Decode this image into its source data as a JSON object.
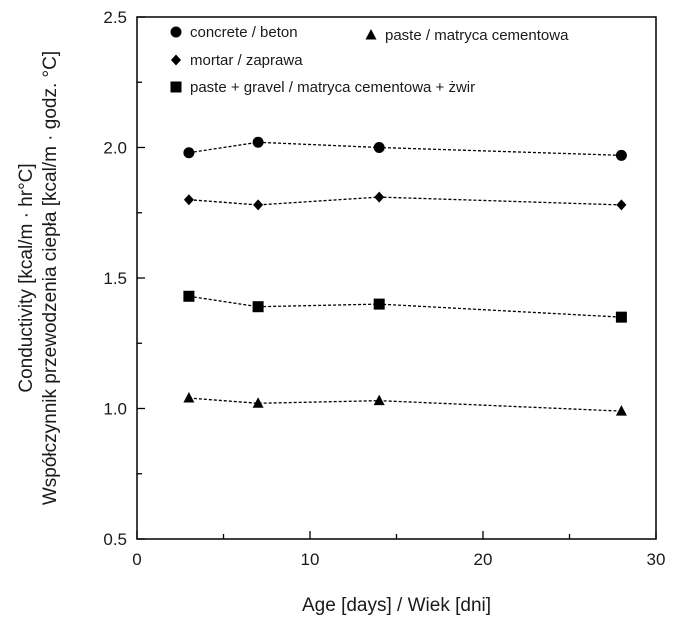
{
  "chart_data": {
    "type": "line",
    "xlabel": "Age [days] / Wiek [dni]",
    "ylabel_line1": "Conductivity [kcal/m · hr°C]",
    "ylabel_line2": "Współczynnik przewodzenia ciepła [kcal/m · godz. °C]",
    "xlim": [
      0,
      30
    ],
    "ylim": [
      0.5,
      2.5
    ],
    "xticks": [
      0,
      10,
      20,
      30
    ],
    "xtick_labels": [
      "0",
      "10",
      "20",
      "30"
    ],
    "yticks": [
      0.5,
      1.0,
      1.5,
      2.0,
      2.5
    ],
    "ytick_labels": [
      "0.5",
      "1.0",
      "1.5",
      "2.0",
      "2.5"
    ],
    "grid": false,
    "legend_position": "top-left",
    "x": [
      3,
      7,
      14,
      28
    ],
    "series": [
      {
        "name": "concrete / beton",
        "marker": "circle",
        "values": [
          1.98,
          2.02,
          2.0,
          1.97
        ]
      },
      {
        "name": "paste / matryca cementowa",
        "marker": "triangle",
        "values": [
          1.04,
          1.02,
          1.03,
          0.99
        ]
      },
      {
        "name": "mortar / zaprawa",
        "marker": "diamond",
        "values": [
          1.8,
          1.78,
          1.81,
          1.78
        ]
      },
      {
        "name": "paste + gravel / matryca cementowa + żwir",
        "marker": "square",
        "values": [
          1.43,
          1.39,
          1.4,
          1.35
        ]
      }
    ],
    "line_style": "dashed",
    "color": "#000000"
  }
}
